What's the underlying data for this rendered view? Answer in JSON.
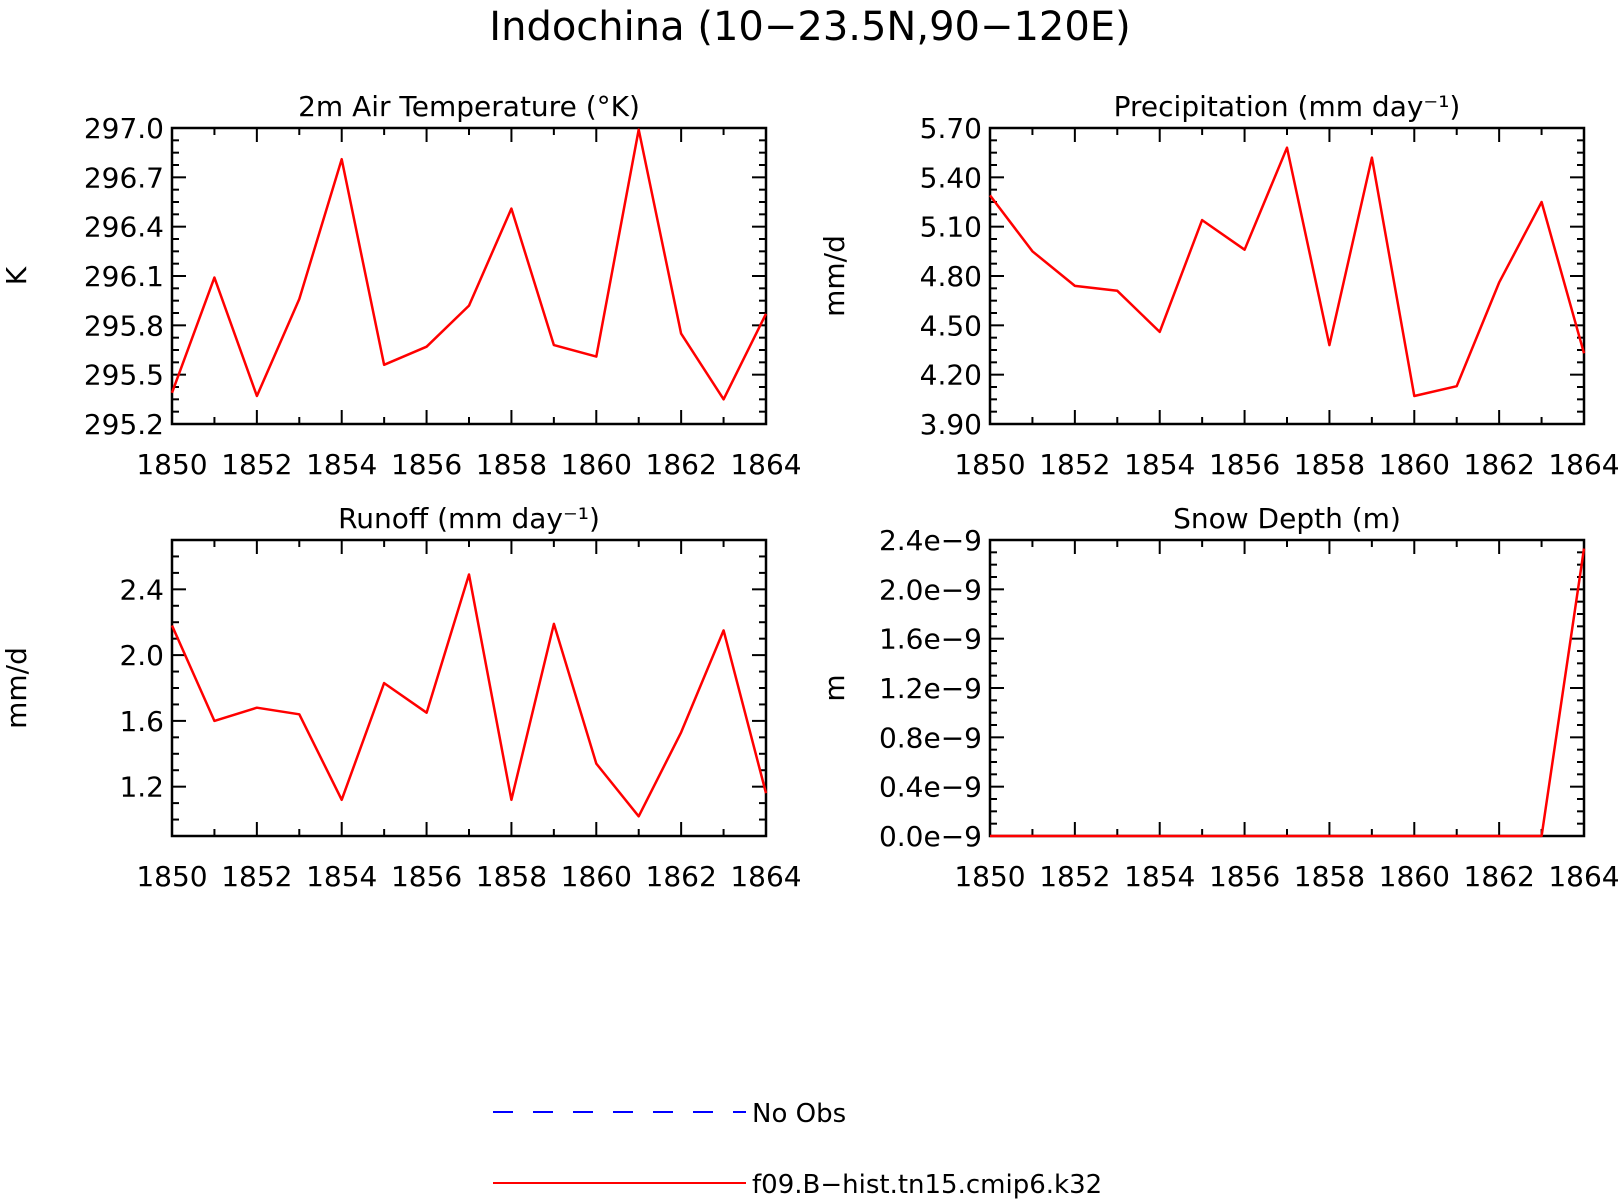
{
  "figure_title": "Indochina (10−23.5N,90−120E)",
  "colors": {
    "model": "#ff0000",
    "obs": "#0000ff",
    "axis": "#000000"
  },
  "legend": [
    {
      "label": "No Obs",
      "color": "#0000ff",
      "style": "dashed"
    },
    {
      "label": "f09.B−hist.tn15.cmip6.k32",
      "color": "#ff0000",
      "style": "solid"
    }
  ],
  "chart_data": [
    {
      "type": "line",
      "title": "2m Air Temperature (°K)",
      "xlabel": "",
      "ylabel": "K",
      "x": [
        1850,
        1851,
        1852,
        1853,
        1854,
        1855,
        1856,
        1857,
        1858,
        1859,
        1860,
        1861,
        1862,
        1863,
        1864
      ],
      "xticks": [
        "1850",
        "1852",
        "1854",
        "1856",
        "1858",
        "1860",
        "1862",
        "1864"
      ],
      "xlim": [
        1850,
        1864
      ],
      "ylim": [
        295.2,
        297.0
      ],
      "yticks": [
        "295.2",
        "295.5",
        "295.8",
        "296.1",
        "296.4",
        "296.7",
        "297.0"
      ],
      "grid": false,
      "series": [
        {
          "values": [
            295.39,
            296.09,
            295.37,
            295.96,
            296.81,
            295.56,
            295.67,
            295.92,
            296.51,
            295.68,
            295.61,
            296.99,
            295.75,
            295.35,
            295.87
          ]
        }
      ]
    },
    {
      "type": "line",
      "title": "Precipitation (mm day⁻¹)",
      "xlabel": "",
      "ylabel": "mm/d",
      "x": [
        1850,
        1851,
        1852,
        1853,
        1854,
        1855,
        1856,
        1857,
        1858,
        1859,
        1860,
        1861,
        1862,
        1863,
        1864
      ],
      "xticks": [
        "1850",
        "1852",
        "1854",
        "1856",
        "1858",
        "1860",
        "1862",
        "1864"
      ],
      "xlim": [
        1850,
        1864
      ],
      "ylim": [
        3.9,
        5.7
      ],
      "yticks": [
        "3.90",
        "4.20",
        "4.50",
        "4.80",
        "5.10",
        "5.40",
        "5.70"
      ],
      "grid": false,
      "series": [
        {
          "values": [
            5.29,
            4.95,
            4.74,
            4.71,
            4.46,
            5.14,
            4.96,
            5.58,
            4.38,
            5.52,
            4.07,
            4.13,
            4.76,
            5.25,
            4.33
          ]
        }
      ]
    },
    {
      "type": "line",
      "title": "Runoff (mm day⁻¹)",
      "xlabel": "",
      "ylabel": "mm/d",
      "x": [
        1850,
        1851,
        1852,
        1853,
        1854,
        1855,
        1856,
        1857,
        1858,
        1859,
        1860,
        1861,
        1862,
        1863,
        1864
      ],
      "xticks": [
        "1850",
        "1852",
        "1854",
        "1856",
        "1858",
        "1860",
        "1862",
        "1864"
      ],
      "xlim": [
        1850,
        1864
      ],
      "ylim": [
        0.9,
        2.7
      ],
      "yticks": [
        "1.2",
        "1.6",
        "2.0",
        "2.4"
      ],
      "grid": false,
      "series": [
        {
          "values": [
            2.18,
            1.6,
            1.68,
            1.64,
            1.12,
            1.83,
            1.65,
            2.49,
            1.12,
            2.19,
            1.34,
            1.02,
            1.53,
            2.15,
            1.16
          ]
        }
      ]
    },
    {
      "type": "line",
      "title": "Snow Depth (m)",
      "xlabel": "",
      "ylabel": "m",
      "x": [
        1850,
        1851,
        1852,
        1853,
        1854,
        1855,
        1856,
        1857,
        1858,
        1859,
        1860,
        1861,
        1862,
        1863,
        1864
      ],
      "xticks": [
        "1850",
        "1852",
        "1854",
        "1856",
        "1858",
        "1860",
        "1862",
        "1864"
      ],
      "xlim": [
        1850,
        1864
      ],
      "ylim": [
        0.0,
        2.4
      ],
      "yticks": [
        "0.0e−9",
        "0.4e−9",
        "0.8e−9",
        "1.2e−9",
        "1.6e−9",
        "2.0e−9",
        "2.4e−9"
      ],
      "ytick_values": [
        0.0,
        0.4,
        0.8,
        1.2,
        1.6,
        2.0,
        2.4
      ],
      "grid": false,
      "series": [
        {
          "values": [
            0,
            0,
            0,
            0,
            0,
            0,
            0,
            0,
            0,
            0,
            0,
            0,
            0,
            0,
            2.33
          ]
        }
      ]
    }
  ]
}
